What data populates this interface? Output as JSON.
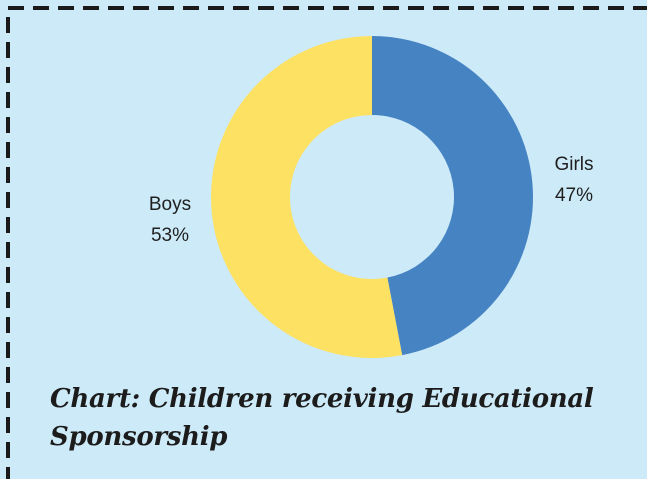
{
  "chart_data": {
    "type": "pie",
    "subtype": "donut",
    "title": "Chart: Children receiving Educational Sponsorship",
    "slices": [
      {
        "label": "Girls",
        "value": 47,
        "display": "47%",
        "color": "#4583c3"
      },
      {
        "label": "Boys",
        "value": 53,
        "display": "53%",
        "color": "#fde163"
      }
    ],
    "legend": "none"
  },
  "colors": {
    "background": "#cdeaf8",
    "border": "#1a1a1a"
  }
}
